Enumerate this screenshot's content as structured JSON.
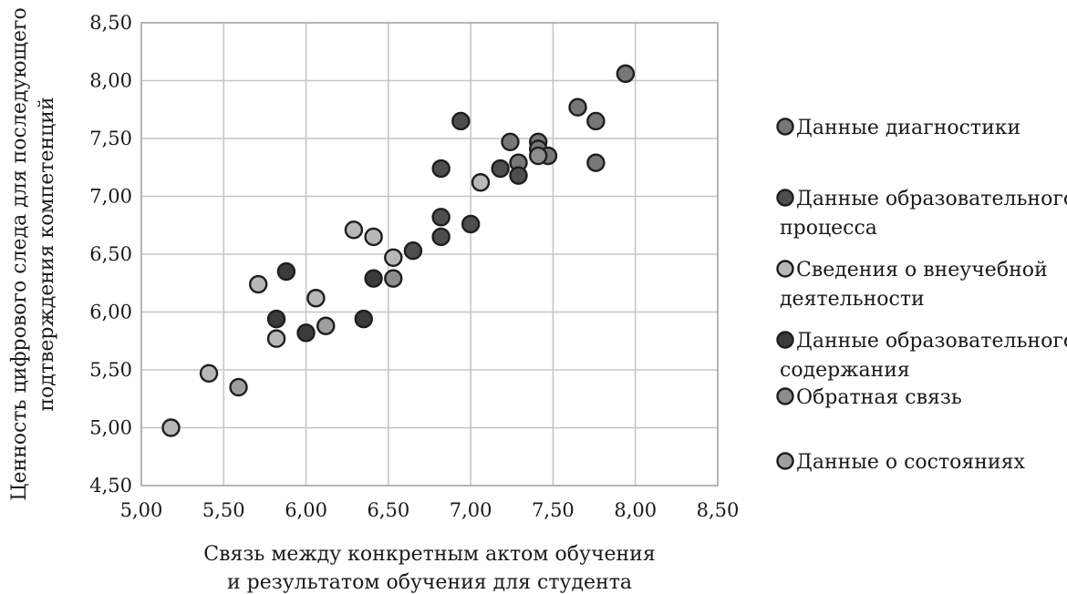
{
  "chart_data": {
    "type": "scatter",
    "xlabel": [
      "Связь между конкретным актом обучения",
      "и результатом  обучения для студента"
    ],
    "ylabel": [
      "Ценность цифрового следа для последующего",
      "подтверждения компетенций"
    ],
    "xlim": [
      5.0,
      8.5
    ],
    "ylim": [
      4.5,
      8.5
    ],
    "x_ticks": [
      "5,00",
      "5,50",
      "6,00",
      "6,50",
      "7,00",
      "7,50",
      "8,00",
      "8,50"
    ],
    "y_ticks": [
      "4,50",
      "5,00",
      "5,50",
      "6,00",
      "6,50",
      "7,00",
      "7,50",
      "8,00",
      "8,50"
    ],
    "grid": true,
    "legend_position": "right",
    "series": [
      {
        "name": "Данные диагностики",
        "color": "#777777",
        "points": [
          [
            7.94,
            8.06
          ],
          [
            7.65,
            7.77
          ],
          [
            7.76,
            7.65
          ],
          [
            7.76,
            7.29
          ],
          [
            7.24,
            7.47
          ],
          [
            7.41,
            7.47
          ],
          [
            7.41,
            7.41
          ],
          [
            7.47,
            7.35
          ],
          [
            7.29,
            7.29
          ]
        ]
      },
      {
        "name": "Данные образовательного процесса",
        "color": "#4e4e4e",
        "points": [
          [
            6.94,
            7.65
          ],
          [
            6.82,
            7.24
          ],
          [
            6.82,
            6.82
          ],
          [
            6.82,
            6.65
          ],
          [
            7.0,
            6.76
          ],
          [
            7.18,
            7.24
          ],
          [
            7.29,
            7.18
          ],
          [
            6.65,
            6.53
          ]
        ]
      },
      {
        "name": "Сведения о внеучебной деятельности",
        "color": "#b8b8b8",
        "points": [
          [
            7.06,
            7.12
          ],
          [
            6.29,
            6.71
          ],
          [
            6.41,
            6.65
          ],
          [
            6.53,
            6.47
          ],
          [
            5.71,
            6.24
          ],
          [
            6.06,
            6.12
          ],
          [
            5.82,
            5.77
          ],
          [
            5.41,
            5.47
          ],
          [
            5.18,
            5.0
          ]
        ]
      },
      {
        "name": "Данные образовательного содержания",
        "color": "#3b3b3b",
        "points": [
          [
            5.88,
            6.35
          ],
          [
            6.41,
            6.29
          ],
          [
            6.35,
            5.94
          ],
          [
            5.82,
            5.94
          ],
          [
            6.0,
            5.82
          ]
        ]
      },
      {
        "name": "Обратная связь",
        "color": "#8d8d8d",
        "points": [
          [
            7.41,
            7.35
          ],
          [
            6.53,
            6.29
          ]
        ]
      },
      {
        "name": "Данные о состояниях",
        "color": "#9e9e9e",
        "points": [
          [
            6.12,
            5.88
          ],
          [
            5.59,
            5.35
          ]
        ]
      }
    ]
  }
}
